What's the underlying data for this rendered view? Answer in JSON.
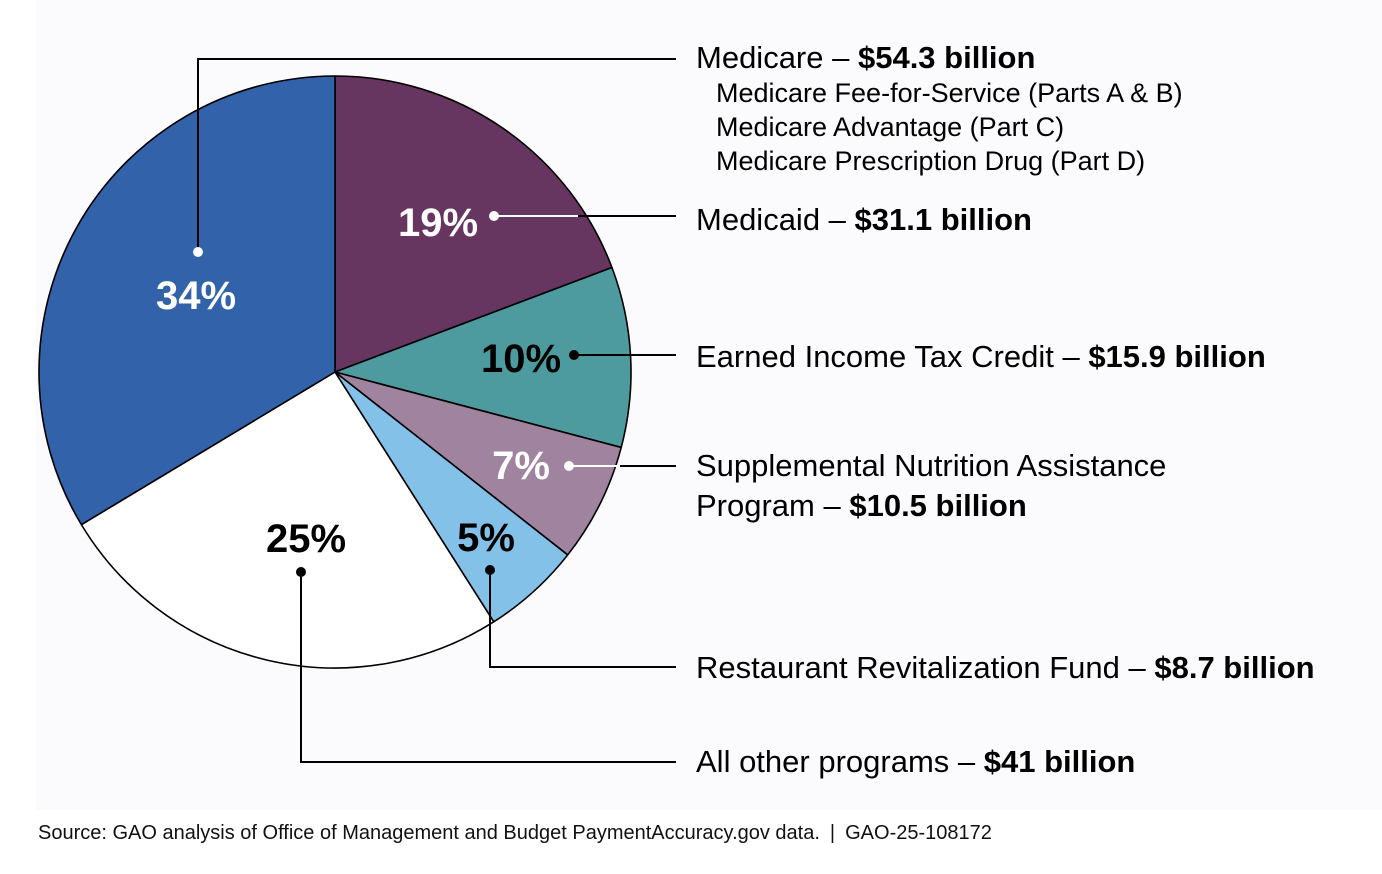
{
  "chart_data": {
    "type": "pie",
    "slices": [
      {
        "label": "Medicare",
        "value": 54.3,
        "percent_label": "34%",
        "color": "#3262a9",
        "label_color": "#ffffff",
        "amount_text": "$54.3 billion",
        "sub_items": [
          "Medicare Fee-for-Service (Parts A & B)",
          "Medicare Advantage (Part C)",
          "Medicare Prescription Drug (Part D)"
        ]
      },
      {
        "label": "Medicaid",
        "value": 31.1,
        "percent_label": "19%",
        "color": "#663660",
        "label_color": "#ffffff",
        "amount_text": "$31.1 billion",
        "sub_items": []
      },
      {
        "label": "Earned Income Tax Credit",
        "value": 15.9,
        "percent_label": "10%",
        "color": "#4e9b9f",
        "label_color": "#000000",
        "amount_text": "$15.9 billion",
        "sub_items": []
      },
      {
        "label": "Supplemental Nutrition Assistance Program",
        "value": 10.5,
        "percent_label": "7%",
        "color": "#a0839f",
        "label_color": "#ffffff",
        "amount_text": "$10.5 billion",
        "sub_items": []
      },
      {
        "label": "Restaurant Revitalization Fund",
        "value": 8.7,
        "percent_label": "5%",
        "color": "#84c1e9",
        "label_color": "#000000",
        "amount_text": "$8.7 billion",
        "sub_items": []
      },
      {
        "label": "All other programs",
        "value": 41,
        "percent_label": "25%",
        "color": "#ffffff",
        "label_color": "#000000",
        "amount_text": "$41 billion",
        "sub_items": []
      }
    ],
    "legend_lines": {
      "medicare": "Medicare",
      "medicaid": "Medicaid",
      "eitc": "Earned Income Tax Credit",
      "snap_line1": "Supplemental Nutrition Assistance",
      "snap_line2": "Program",
      "rrf": "Restaurant Revitalization Fund",
      "other": "All other programs"
    },
    "separator": " – "
  },
  "source": {
    "text": "Source: GAO analysis of Office of Management and Budget PaymentAccuracy.gov data.",
    "separator": "|",
    "report_id": "GAO-25-108172"
  }
}
